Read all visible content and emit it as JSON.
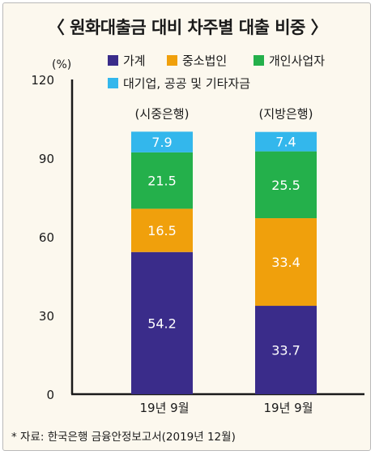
{
  "title": "〈 원화대출금 대비 차주별 대출 비중 〉",
  "source_note": "* 자료: 한국은행 금융안정보고서(2019년 12월)",
  "chart_data": {
    "type": "bar",
    "stacked": true,
    "unit_label": "(%)",
    "ylim": [
      0,
      120
    ],
    "yticks": [
      "0",
      "30",
      "60",
      "90",
      "120"
    ],
    "categories": [
      "19년  9월",
      "19년  9월"
    ],
    "group_labels": [
      "(시중은행)",
      "(지방은행)"
    ],
    "series": [
      {
        "name": "가계",
        "color": "#3a2c8a",
        "values": [
          54.2,
          33.7
        ],
        "labels": [
          "54.2",
          "33.7"
        ]
      },
      {
        "name": "중소법인",
        "color": "#f0a00c",
        "values": [
          16.5,
          33.4
        ],
        "labels": [
          "16.5",
          "33.4"
        ]
      },
      {
        "name": "개인사업자",
        "color": "#24b04b",
        "values": [
          21.5,
          25.5
        ],
        "labels": [
          "21.5",
          "25.5"
        ]
      },
      {
        "name": "대기업, 공공 및 기타자금",
        "color": "#33b7ec",
        "values": [
          7.9,
          7.4
        ],
        "labels": [
          "7.9",
          "7.4"
        ]
      }
    ],
    "grid": false,
    "legend_position": "top"
  }
}
